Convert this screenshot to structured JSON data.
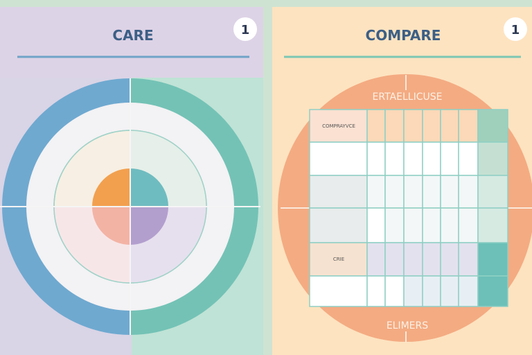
{
  "left_panel": {
    "title": "CARE",
    "badge": "1",
    "colors": {
      "background": "#ddd3e6",
      "accent_blue": "#6fa9d0",
      "accent_teal": "#74c2b6",
      "orange": "#f2a04e",
      "pink": "#f3b3a4",
      "purple": "#b39fce"
    }
  },
  "right_panel": {
    "title": "COMPARE",
    "badge": "1",
    "top_label": "ERTAELLICUSE",
    "bottom_label": "ELIMERS",
    "table": {
      "header_cell": "COMPRAYVCE",
      "row_label": "CRIE"
    },
    "colors": {
      "background": "#fde3c0",
      "circle": "#f4ab82",
      "grid": "#8fcfc4",
      "teal": "#6cc0b8"
    }
  }
}
